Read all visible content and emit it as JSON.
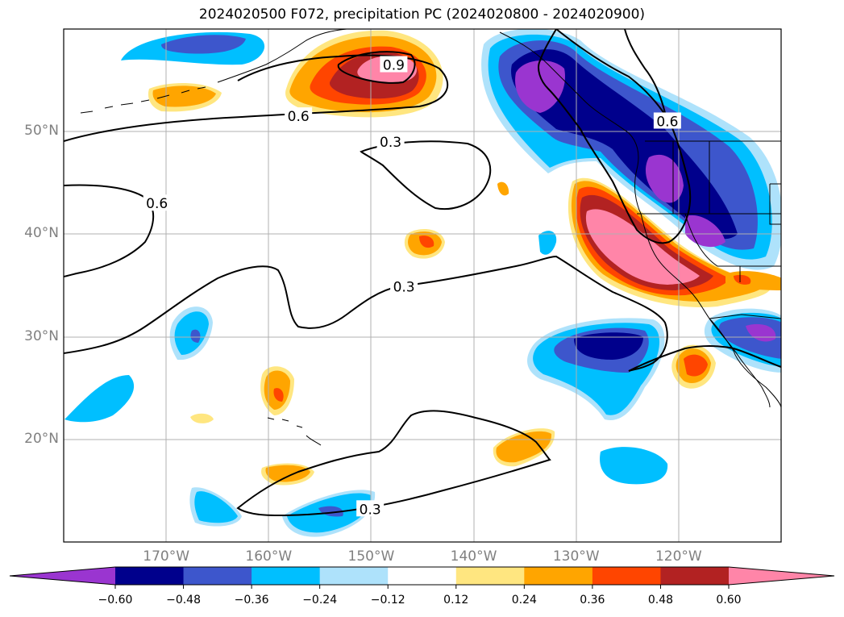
{
  "title": "2024020500 F072, precipitation PC (2024020800 - 2024020900)",
  "lat_ticks": [
    {
      "value": 50,
      "label": "50°N"
    },
    {
      "value": 40,
      "label": "40°N"
    },
    {
      "value": 30,
      "label": "30°N"
    },
    {
      "value": 20,
      "label": "20°N"
    }
  ],
  "lon_ticks": [
    {
      "value": -170,
      "label": "170°W"
    },
    {
      "value": -160,
      "label": "160°W"
    },
    {
      "value": -150,
      "label": "150°W"
    },
    {
      "value": -140,
      "label": "140°W"
    },
    {
      "value": -130,
      "label": "130°W"
    },
    {
      "value": -120,
      "label": "120°W"
    }
  ],
  "map_extent": {
    "lon_min": -180,
    "lon_max": -110,
    "lat_min": 10,
    "lat_max": 60
  },
  "contour_labels": [
    {
      "text": "0.9",
      "lon": -147.8,
      "lat": 56.5
    },
    {
      "text": "0.6",
      "lon": -157.1,
      "lat": 51.5
    },
    {
      "text": "0.3",
      "lon": -148.1,
      "lat": 49.0
    },
    {
      "text": "0.6",
      "lon": -170.9,
      "lat": 43.0
    },
    {
      "text": "0.3",
      "lon": -146.8,
      "lat": 34.9
    },
    {
      "text": "0.3",
      "lon": -150.1,
      "lat": 13.2
    },
    {
      "text": "0.6",
      "lon": -121.1,
      "lat": 51.0
    }
  ],
  "colorbar": {
    "ticks": [
      "−0.60",
      "−0.48",
      "−0.36",
      "−0.24",
      "−0.12",
      "0.12",
      "0.24",
      "0.36",
      "0.48",
      "0.60"
    ],
    "colors": [
      "#9a35d0",
      "#00008c",
      "#3d56cc",
      "#00bfff",
      "#aee2fb",
      "#ffffff",
      "#ffe680",
      "#ffa500",
      "#ff4500",
      "#b22222",
      "#ff85a8"
    ]
  }
}
